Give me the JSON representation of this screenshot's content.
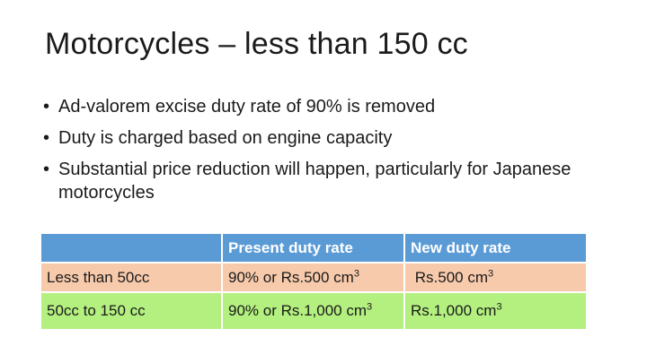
{
  "slide": {
    "title": "Motorcycles – less than 150 cc",
    "bullets": [
      "Ad-valorem excise duty rate of 90% is removed",
      "Duty is charged based on engine capacity",
      "Substantial price reduction will happen, particularly for Japanese motorcycles"
    ],
    "bullet_glyph": "•"
  },
  "table": {
    "headers": [
      "",
      "Present duty rate",
      "New duty rate"
    ],
    "rows": [
      {
        "category": "Less than 50cc",
        "present": "90% or Rs.500 cm",
        "present_sup": "3",
        "new": "Rs.500 cm",
        "new_sup": "3",
        "color": "#f7caac"
      },
      {
        "category": "50cc to 150 cc",
        "present": "90% or Rs.1,000 cm",
        "present_sup": "3",
        "new": "Rs.1,000 cm",
        "new_sup": "3",
        "color": "#b4f07f"
      }
    ],
    "header_color": "#5b9bd5"
  }
}
